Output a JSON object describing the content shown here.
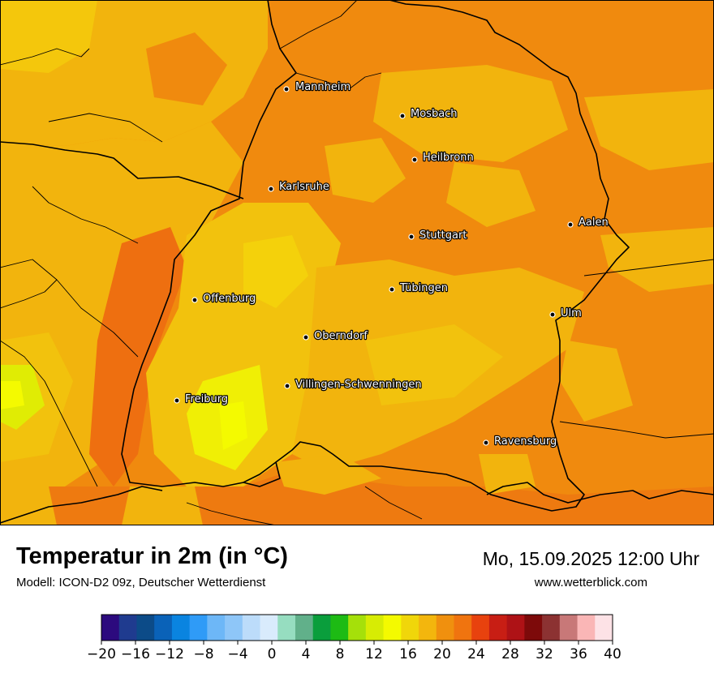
{
  "map": {
    "cities": [
      {
        "name": "Mannheim"
      },
      {
        "name": "Mosbach"
      },
      {
        "name": "Heilbronn"
      },
      {
        "name": "Karlsruhe"
      },
      {
        "name": "Aalen"
      },
      {
        "name": "Stuttgart"
      },
      {
        "name": "Tübingen"
      },
      {
        "name": "Offenburg"
      },
      {
        "name": "Ulm"
      },
      {
        "name": "Oberndorf"
      },
      {
        "name": "Villingen-Schwenningen"
      },
      {
        "name": "Freiburg"
      },
      {
        "name": "Ravensburg"
      }
    ]
  },
  "footer": {
    "title": "Temperatur in 2m (in °C)",
    "model": "Modell: ICON-D2 09z, Deutscher Wetterdienst",
    "datetime": "Mo, 15.09.2025 12:00 Uhr",
    "website": "www.wetterblick.com"
  },
  "legend": {
    "ticks": [
      "−20",
      "−16",
      "−12",
      "−8",
      "−4",
      "0",
      "4",
      "8",
      "12",
      "16",
      "20",
      "24",
      "28",
      "32",
      "36",
      "40"
    ],
    "colors": [
      "#2c0a7e",
      "#1f3b8f",
      "#0c4b88",
      "#0a62b8",
      "#0a84e0",
      "#2f9bf7",
      "#6db7f7",
      "#8ec6f8",
      "#bcdcfa",
      "#d9ebfc",
      "#96ddc0",
      "#61b08a",
      "#0a9e3c",
      "#1dbb14",
      "#a5e00a",
      "#d7ec04",
      "#f4fa00",
      "#f0d60a",
      "#f3b60d",
      "#f0900e",
      "#f0740f",
      "#e8420e",
      "#c81e14",
      "#ae1216",
      "#7d0a0a",
      "#8c3232",
      "#c87878",
      "#fab6b6",
      "#fde2e6"
    ]
  }
}
